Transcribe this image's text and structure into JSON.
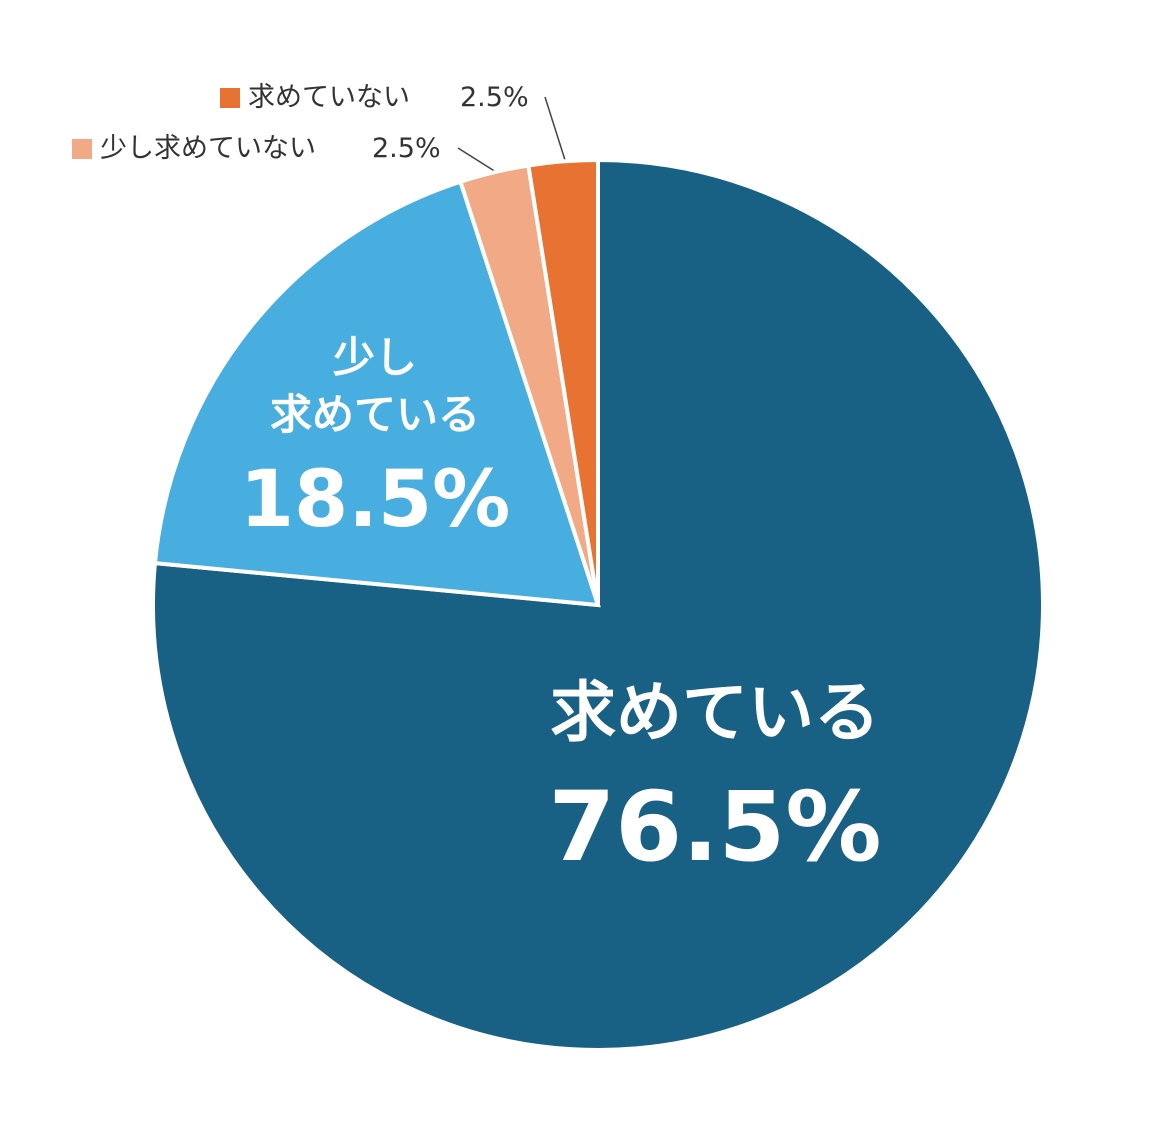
{
  "chart_data": {
    "type": "pie",
    "categories": [
      "求めている",
      "少し\n求めている",
      "少し求めていない",
      "求めていない"
    ],
    "values": [
      76.5,
      18.5,
      2.5,
      2.5
    ],
    "value_labels": [
      "76.5%",
      "18.5%",
      "2.5%",
      "2.5%"
    ],
    "colors": [
      "#186084",
      "#48aee0",
      "#f2aa86",
      "#e87232"
    ]
  }
}
